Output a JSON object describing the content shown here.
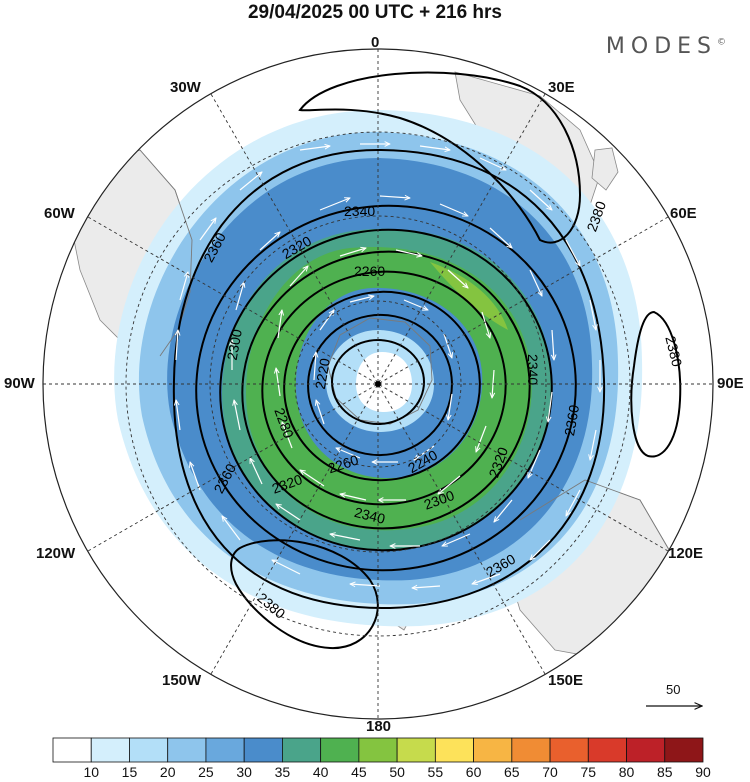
{
  "title": "29/04/2025  00 UTC  + 216 hrs",
  "brand": "MODES",
  "brand_mark": "©",
  "longitude_labels": {
    "0": "0",
    "30E": "30E",
    "60E": "60E",
    "90E": "90E",
    "120E": "120E",
    "150E": "150E",
    "180": "180",
    "150W": "150W",
    "120W": "120W",
    "90W": "90W",
    "60W": "60W",
    "30W": "30W"
  },
  "contour_labels": [
    "2220",
    "2240",
    "2260",
    "2280",
    "2300",
    "2320",
    "2340",
    "2360",
    "2380"
  ],
  "vector_reference": "50",
  "colorbar": {
    "ticks": [
      "10",
      "15",
      "20",
      "25",
      "30",
      "35",
      "40",
      "45",
      "50",
      "55",
      "60",
      "65",
      "70",
      "75",
      "80",
      "85",
      "90"
    ],
    "colors": [
      "#ffffff",
      "#d4effc",
      "#b3dff8",
      "#8ec5ec",
      "#69a8dd",
      "#4a8ccb",
      "#4aa48a",
      "#4fb150",
      "#84c440",
      "#c6db4c",
      "#fde25a",
      "#f7b544",
      "#f08c34",
      "#e9602d",
      "#d93a2a",
      "#bd2128",
      "#8e1618"
    ]
  },
  "colors": {
    "land": "#ebebeb",
    "coast": "#7a7a7a",
    "contour": "#000000",
    "grid": "#333333"
  }
}
